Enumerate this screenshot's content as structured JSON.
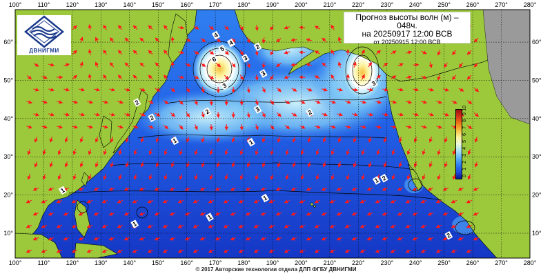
{
  "title": {
    "line1": "Прогноз высоты волн (м) –",
    "line2": "048ч.",
    "line3": "на 20250917 12:00 ВСВ",
    "line4": "от 20250915 12:00 ВСВ"
  },
  "logo": {
    "text": "ДВНИГМИ",
    "icon": "wave-logo-icon"
  },
  "footer": "© 2017 Авторские технологии отдела ДЛП ФГБУ ДВНИГМИ",
  "lon_labels": [
    "100°",
    "110°",
    "120°",
    "130°",
    "140°",
    "150°",
    "160°",
    "170°",
    "180°",
    "190°",
    "200°",
    "210°",
    "220°",
    "230°",
    "240°",
    "250°",
    "260°",
    "270°",
    "280°"
  ],
  "lat_labels": [
    "60°",
    "50°",
    "40°",
    "30°",
    "20°",
    "10°"
  ],
  "colorbar": {
    "labels": [
      "0",
      "1",
      "2",
      "3",
      "4",
      "5",
      "6",
      "7",
      "8",
      "9",
      "10"
    ],
    "colors": [
      "#0a1a8c",
      "#1f4de0",
      "#2f7ff0",
      "#5fb4f5",
      "#a6e0f7",
      "#ecf9d8",
      "#fbf4a0",
      "#f7c040",
      "#ef7a18",
      "#d8321a",
      "#9c1010"
    ]
  },
  "isoline_labels": [
    {
      "text": "4",
      "lon": 170.2,
      "lat": 61.8
    },
    {
      "text": "5",
      "lon": 172.4,
      "lat": 58.2
    },
    {
      "text": "6",
      "lon": 169.6,
      "lat": 55.5
    },
    {
      "text": "4",
      "lon": 175.5,
      "lat": 59.8
    },
    {
      "text": "3",
      "lon": 180.5,
      "lat": 55.8
    },
    {
      "text": "2",
      "lon": 184.8,
      "lat": 58.8
    },
    {
      "text": "3",
      "lon": 186.8,
      "lat": 51.8
    },
    {
      "text": "3",
      "lon": 173.2,
      "lat": 48.6
    },
    {
      "text": "2",
      "lon": 142.6,
      "lat": 44.2
    },
    {
      "text": "2",
      "lon": 147.8,
      "lat": 40.2
    },
    {
      "text": "2",
      "lon": 167.2,
      "lat": 41.8
    },
    {
      "text": "3",
      "lon": 184.8,
      "lat": 42.4
    },
    {
      "text": "2",
      "lon": 203.0,
      "lat": 41.6
    },
    {
      "text": "3",
      "lon": 225.4,
      "lat": 49.2
    },
    {
      "text": "1",
      "lon": 155.8,
      "lat": 34.2
    },
    {
      "text": "1",
      "lon": 182.5,
      "lat": 33.8
    },
    {
      "text": "1",
      "lon": 226.4,
      "lat": 23.8
    },
    {
      "text": "2",
      "lon": 229.0,
      "lat": 24.4
    },
    {
      "text": "1",
      "lon": 187.4,
      "lat": 19.2
    },
    {
      "text": "1",
      "lon": 168.0,
      "lat": 14.2
    },
    {
      "text": "1",
      "lon": 141.8,
      "lat": 12.4
    },
    {
      "text": "1",
      "lon": 116.6,
      "lat": 21.2
    },
    {
      "text": "2",
      "lon": 251.6,
      "lat": 9.4
    }
  ]
}
